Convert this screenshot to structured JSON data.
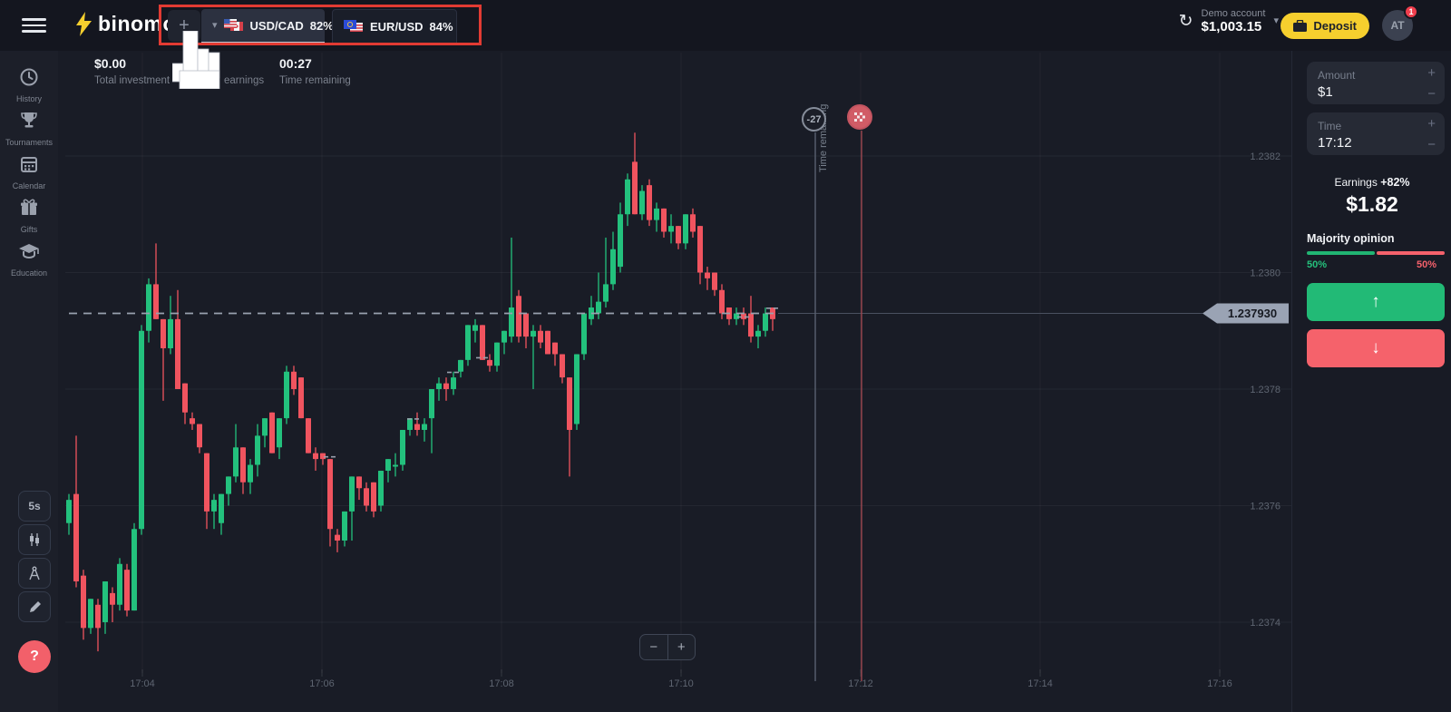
{
  "colors": {
    "bull": "#23c17d",
    "bear": "#f0545f",
    "accent_yellow": "#f6cf2e",
    "highlight_red": "#e23b33",
    "price_tag_bg": "#9aa3b4"
  },
  "topbar": {
    "logo_text": "binomo",
    "plus_label": "+",
    "tab_chevron": "▾",
    "tabs": [
      {
        "pair": "USD/CAD",
        "payout": "82%"
      },
      {
        "pair": "EUR/USD",
        "payout": "84%"
      }
    ],
    "account": {
      "type": "Demo account",
      "balance": "$1,003.15",
      "chevron": "▾",
      "refresh_glyph": "↻"
    },
    "deposit_label": "Deposit",
    "avatar_initials": "AT",
    "notification_count": "1"
  },
  "sidebar": {
    "items": [
      {
        "label": "History"
      },
      {
        "label": "Tournaments"
      },
      {
        "label": "Calendar"
      },
      {
        "label": "Gifts"
      },
      {
        "label": "Education"
      }
    ],
    "timeframe_label": "5s",
    "help_label": "?"
  },
  "info_bar": {
    "total_investment": {
      "value": "$0.00",
      "label": "Total investment"
    },
    "earnings": {
      "label": "earnings"
    },
    "time_remaining": {
      "value": "00:27",
      "label": "Time remaining"
    }
  },
  "zoom_controls": {
    "out": "−",
    "in": "+"
  },
  "trade_panel": {
    "amount": {
      "label": "Amount",
      "value": "$1",
      "plus": "+",
      "minus": "−"
    },
    "time": {
      "label": "Time",
      "value": "17:12",
      "plus": "+",
      "minus": "−"
    },
    "earnings_label": "Earnings",
    "earnings_pct": "+82%",
    "earnings_value": "$1.82",
    "majority_label": "Majority opinion",
    "up_pct": "50%",
    "down_pct": "50%",
    "up_arrow": "↑",
    "down_arrow": "↓"
  },
  "chart_data": {
    "type": "candlestick",
    "pair": "USD/CAD",
    "timeframe_seconds": 5,
    "current_price": "1.237930",
    "y_ticks": [
      "1.2382",
      "1.2380",
      "1.2378",
      "1.2376",
      "1.2374"
    ],
    "x_ticks": [
      "17:04",
      "17:06",
      "17:08",
      "17:10",
      "17:12",
      "17:14",
      "17:16"
    ],
    "time_marker": {
      "label": "-27",
      "text": "Time remaining"
    },
    "trade_marks": [
      [
        36,
        1.237685
      ],
      [
        47.5,
        1.23775
      ],
      [
        53,
        1.23783
      ],
      [
        57,
        1.237855
      ],
      [
        93,
        1.237925
      ],
      [
        97,
        1.23794
      ]
    ],
    "candles": [
      [
        1.23757,
        1.23762,
        1.23755,
        1.23761
      ],
      [
        1.23762,
        1.23772,
        1.23746,
        1.23747
      ],
      [
        1.23748,
        1.23749,
        1.23737,
        1.23739
      ],
      [
        1.23739,
        1.23744,
        1.23738,
        1.23744
      ],
      [
        1.23743,
        1.23744,
        1.23735,
        1.23739
      ],
      [
        1.2374,
        1.23747,
        1.23738,
        1.23747
      ],
      [
        1.23745,
        1.23746,
        1.2374,
        1.23743
      ],
      [
        1.23743,
        1.23751,
        1.23742,
        1.2375
      ],
      [
        1.23749,
        1.2375,
        1.23741,
        1.23742
      ],
      [
        1.23742,
        1.23757,
        1.23742,
        1.23756
      ],
      [
        1.23756,
        1.23791,
        1.23755,
        1.2379
      ],
      [
        1.2379,
        1.23799,
        1.23788,
        1.23798
      ],
      [
        1.23798,
        1.23805,
        1.23792,
        1.23792
      ],
      [
        1.23792,
        1.23792,
        1.23778,
        1.23787
      ],
      [
        1.23787,
        1.23796,
        1.23786,
        1.23792
      ],
      [
        1.23792,
        1.23797,
        1.2378,
        1.2378
      ],
      [
        1.23781,
        1.23781,
        1.23774,
        1.23776
      ],
      [
        1.23775,
        1.23776,
        1.23773,
        1.23774
      ],
      [
        1.23774,
        1.23774,
        1.23769,
        1.2377
      ],
      [
        1.23769,
        1.23769,
        1.23756,
        1.23759
      ],
      [
        1.23759,
        1.23762,
        1.23756,
        1.23761
      ],
      [
        1.23757,
        1.23762,
        1.23755,
        1.23762
      ],
      [
        1.23762,
        1.23765,
        1.2376,
        1.23765
      ],
      [
        1.23765,
        1.23774,
        1.23764,
        1.2377
      ],
      [
        1.2377,
        1.2377,
        1.23762,
        1.23764
      ],
      [
        1.23764,
        1.23768,
        1.23762,
        1.23767
      ],
      [
        1.23767,
        1.23774,
        1.23765,
        1.23772
      ],
      [
        1.23772,
        1.23775,
        1.2377,
        1.23775
      ],
      [
        1.23776,
        1.23776,
        1.23769,
        1.23769
      ],
      [
        1.2377,
        1.23775,
        1.23768,
        1.23775
      ],
      [
        1.23775,
        1.23784,
        1.23774,
        1.23783
      ],
      [
        1.23783,
        1.23784,
        1.23779,
        1.2378
      ],
      [
        1.23782,
        1.23782,
        1.23775,
        1.23775
      ],
      [
        1.23775,
        1.23775,
        1.23769,
        1.23769
      ],
      [
        1.23769,
        1.2377,
        1.23766,
        1.23768
      ],
      [
        1.23769,
        1.23769,
        1.23767,
        1.23768
      ],
      [
        1.23768,
        1.23768,
        1.23753,
        1.23756
      ],
      [
        1.23755,
        1.23756,
        1.23752,
        1.23754
      ],
      [
        1.23754,
        1.23759,
        1.23753,
        1.23759
      ],
      [
        1.23759,
        1.23765,
        1.23754,
        1.23765
      ],
      [
        1.23765,
        1.23765,
        1.23761,
        1.23763
      ],
      [
        1.23763,
        1.23764,
        1.23759,
        1.2376
      ],
      [
        1.23764,
        1.23764,
        1.23758,
        1.23759
      ],
      [
        1.2376,
        1.23766,
        1.23759,
        1.23766
      ],
      [
        1.23766,
        1.23768,
        1.23764,
        1.23768
      ],
      [
        1.23767,
        1.23769,
        1.23765,
        1.23767
      ],
      [
        1.23767,
        1.23773,
        1.23766,
        1.23773
      ],
      [
        1.23773,
        1.23775,
        1.23772,
        1.23775
      ],
      [
        1.23774,
        1.23776,
        1.23772,
        1.23773
      ],
      [
        1.23773,
        1.23775,
        1.23771,
        1.23774
      ],
      [
        1.23775,
        1.2378,
        1.23769,
        1.2378
      ],
      [
        1.2378,
        1.23782,
        1.23778,
        1.23781
      ],
      [
        1.23781,
        1.23782,
        1.23778,
        1.2378
      ],
      [
        1.2378,
        1.23783,
        1.23779,
        1.23782
      ],
      [
        1.23783,
        1.23785,
        1.23782,
        1.23785
      ],
      [
        1.23785,
        1.23791,
        1.23784,
        1.23791
      ],
      [
        1.2379,
        1.23792,
        1.23788,
        1.23791
      ],
      [
        1.23791,
        1.23791,
        1.23785,
        1.23785
      ],
      [
        1.23785,
        1.23786,
        1.23783,
        1.23784
      ],
      [
        1.23784,
        1.23788,
        1.23783,
        1.23788
      ],
      [
        1.23788,
        1.2379,
        1.23786,
        1.2379
      ],
      [
        1.23789,
        1.23806,
        1.23788,
        1.23794
      ],
      [
        1.23796,
        1.23797,
        1.23788,
        1.23789
      ],
      [
        1.23793,
        1.23793,
        1.23787,
        1.23789
      ],
      [
        1.23789,
        1.23791,
        1.2378,
        1.2379
      ],
      [
        1.2379,
        1.23791,
        1.23787,
        1.23788
      ],
      [
        1.2379,
        1.2379,
        1.23786,
        1.23786
      ],
      [
        1.23788,
        1.23788,
        1.23784,
        1.23786
      ],
      [
        1.23786,
        1.23786,
        1.23781,
        1.23782
      ],
      [
        1.23782,
        1.23782,
        1.23765,
        1.23773
      ],
      [
        1.23774,
        1.23786,
        1.23773,
        1.23786
      ],
      [
        1.23786,
        1.23793,
        1.23785,
        1.23793
      ],
      [
        1.23792,
        1.23796,
        1.23791,
        1.23794
      ],
      [
        1.23793,
        1.238,
        1.23792,
        1.23795
      ],
      [
        1.23795,
        1.23806,
        1.23794,
        1.23798
      ],
      [
        1.23798,
        1.23807,
        1.23797,
        1.23804
      ],
      [
        1.23801,
        1.23812,
        1.238,
        1.2381
      ],
      [
        1.2381,
        1.23817,
        1.23808,
        1.23816
      ],
      [
        1.23819,
        1.23824,
        1.2381,
        1.2381
      ],
      [
        1.2381,
        1.23815,
        1.23809,
        1.23814
      ],
      [
        1.23815,
        1.23816,
        1.23808,
        1.23809
      ],
      [
        1.23809,
        1.23812,
        1.23807,
        1.23811
      ],
      [
        1.23811,
        1.23811,
        1.23806,
        1.23807
      ],
      [
        1.23807,
        1.2381,
        1.23805,
        1.23808
      ],
      [
        1.23808,
        1.23808,
        1.23804,
        1.23805
      ],
      [
        1.23805,
        1.2381,
        1.23804,
        1.2381
      ],
      [
        1.2381,
        1.23811,
        1.23806,
        1.23807
      ],
      [
        1.23808,
        1.23808,
        1.23798,
        1.238
      ],
      [
        1.238,
        1.23801,
        1.23797,
        1.23799
      ],
      [
        1.238,
        1.238,
        1.23796,
        1.23797
      ],
      [
        1.23797,
        1.23798,
        1.23792,
        1.23793
      ],
      [
        1.23794,
        1.23794,
        1.23791,
        1.23792
      ],
      [
        1.23792,
        1.23794,
        1.23791,
        1.23793
      ],
      [
        1.23793,
        1.23794,
        1.23791,
        1.23792
      ],
      [
        1.23793,
        1.23796,
        1.23788,
        1.23789
      ],
      [
        1.23789,
        1.23791,
        1.23787,
        1.2379
      ],
      [
        1.2379,
        1.23794,
        1.23789,
        1.23793
      ],
      [
        1.23794,
        1.23794,
        1.2379,
        1.23792
      ]
    ]
  }
}
